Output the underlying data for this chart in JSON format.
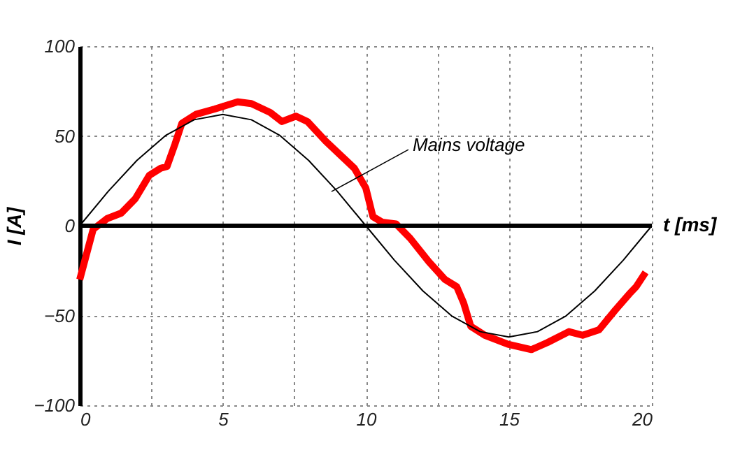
{
  "chart_data": {
    "type": "line",
    "xlabel": "t [ms]",
    "ylabel": "I [A]",
    "xlim": [
      0,
      20
    ],
    "ylim": [
      -100,
      100
    ],
    "xticks": [
      0,
      {
        "value": 2.5,
        "label": null
      },
      5,
      {
        "value": 7.5,
        "label": null
      },
      10,
      {
        "value": 12.5,
        "label": null
      },
      15,
      {
        "value": 17.5,
        "label": null
      },
      20
    ],
    "yticks": [
      -100,
      -50,
      0,
      50,
      100
    ],
    "grid": true,
    "marker": "none",
    "line_style": "solid",
    "ref_lines": [
      {
        "axis": "y",
        "value": 0,
        "color": "#000000"
      }
    ],
    "annotations": [
      {
        "text": "Mains voltage",
        "x": 8.8,
        "y": 19
      }
    ],
    "series": [
      {
        "color": "#000000",
        "x": [
          0,
          1,
          2,
          3,
          4,
          5,
          6,
          7,
          8,
          9,
          10,
          11,
          12,
          13,
          14,
          15,
          16,
          17,
          18,
          19,
          20
        ],
        "values": [
          0,
          19.2,
          36.4,
          50.2,
          59,
          62,
          59,
          50.2,
          36.4,
          19.2,
          0,
          -19.2,
          -36.4,
          -50.2,
          -59,
          -62,
          -59,
          -50.2,
          -36.4,
          -19.2,
          0
        ]
      },
      {
        "color": "#ff0000",
        "x": [
          0,
          0.47,
          0.96,
          1.45,
          1.94,
          2.43,
          2.83,
          3.05,
          3.32,
          3.57,
          4.06,
          4.72,
          5.52,
          6.0,
          6.66,
          7.07,
          7.56,
          7.96,
          8.6,
          9.6,
          10.0,
          10.25,
          10.57,
          11.06,
          11.55,
          12.2,
          12.77,
          13.18,
          13.42,
          13.67,
          14.16,
          14.97,
          15.79,
          16.36,
          17.1,
          17.58,
          18.15,
          18.72,
          19.21,
          19.45,
          19.78
        ],
        "values": [
          -30,
          -2,
          4,
          7,
          15,
          28,
          32,
          33,
          45,
          57,
          62,
          65,
          69,
          68,
          63,
          58,
          61,
          58,
          47,
          32,
          21,
          5,
          2,
          1,
          -7,
          -20,
          -30,
          -34,
          -43,
          -56,
          -61,
          -66,
          -69,
          -65,
          -59,
          -61,
          -58,
          -47,
          -38,
          -34,
          -26
        ]
      }
    ]
  }
}
